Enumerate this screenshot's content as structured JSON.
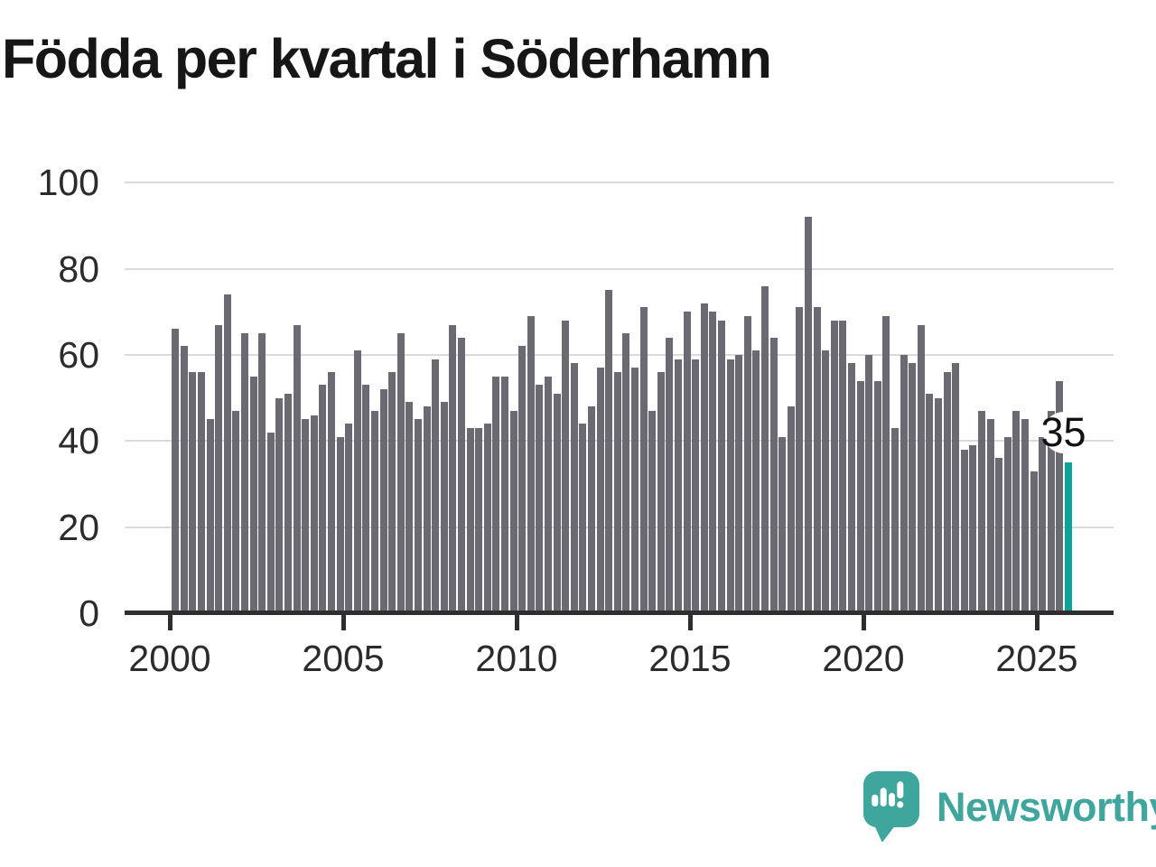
{
  "title": "Födda per kvartal i Söderhamn",
  "annotation": {
    "label": "35"
  },
  "logo": {
    "text": "Newsworthy"
  },
  "colors": {
    "bar": "#6b6a73",
    "highlight": "#0da39b",
    "grid": "#dadada",
    "axis": "#2e2e2e",
    "title_text": "#161616",
    "tick_text": "#2b2b2b",
    "logo_teal": "#3fa69d",
    "annotation_bg": "#ffffff",
    "annotation_text": "#111111"
  },
  "chart_data": {
    "type": "bar",
    "title": "Födda per kvartal i Söderhamn",
    "x_unit": "quarter",
    "period_start": "2000 Q1",
    "period_end": "2025 Q4",
    "ylim": [
      0,
      100
    ],
    "yticks": [
      0,
      20,
      40,
      60,
      80,
      100
    ],
    "xticks_years": [
      2000,
      2005,
      2010,
      2015,
      2020,
      2025
    ],
    "grid": "horizontal",
    "legend": "none",
    "highlight_last_bar": true,
    "last_value_label": "35",
    "series_by_year": [
      {
        "year": 2000,
        "quarters": [
          66,
          62,
          56,
          56
        ]
      },
      {
        "year": 2001,
        "quarters": [
          45,
          67,
          74,
          47
        ]
      },
      {
        "year": 2002,
        "quarters": [
          65,
          55,
          65,
          42
        ]
      },
      {
        "year": 2003,
        "quarters": [
          50,
          51,
          67,
          45
        ]
      },
      {
        "year": 2004,
        "quarters": [
          46,
          53,
          56,
          41
        ]
      },
      {
        "year": 2005,
        "quarters": [
          44,
          61,
          53,
          47
        ]
      },
      {
        "year": 2006,
        "quarters": [
          52,
          56,
          65,
          49
        ]
      },
      {
        "year": 2007,
        "quarters": [
          45,
          48,
          59,
          49
        ]
      },
      {
        "year": 2008,
        "quarters": [
          67,
          64,
          43,
          43
        ]
      },
      {
        "year": 2009,
        "quarters": [
          44,
          55,
          55,
          47
        ]
      },
      {
        "year": 2010,
        "quarters": [
          62,
          69,
          53,
          55
        ]
      },
      {
        "year": 2011,
        "quarters": [
          51,
          68,
          58,
          44
        ]
      },
      {
        "year": 2012,
        "quarters": [
          48,
          57,
          75,
          56
        ]
      },
      {
        "year": 2013,
        "quarters": [
          65,
          57,
          71,
          47
        ]
      },
      {
        "year": 2014,
        "quarters": [
          56,
          64,
          59,
          70
        ]
      },
      {
        "year": 2015,
        "quarters": [
          59,
          72,
          70,
          68
        ]
      },
      {
        "year": 2016,
        "quarters": [
          59,
          60,
          69,
          61
        ]
      },
      {
        "year": 2017,
        "quarters": [
          76,
          64,
          41,
          48
        ]
      },
      {
        "year": 2018,
        "quarters": [
          71,
          92,
          71,
          61
        ]
      },
      {
        "year": 2019,
        "quarters": [
          68,
          68,
          58,
          54
        ]
      },
      {
        "year": 2020,
        "quarters": [
          60,
          54,
          69,
          43
        ]
      },
      {
        "year": 2021,
        "quarters": [
          60,
          58,
          67,
          51
        ]
      },
      {
        "year": 2022,
        "quarters": [
          50,
          56,
          58,
          38
        ]
      },
      {
        "year": 2023,
        "quarters": [
          39,
          47,
          45,
          36
        ]
      },
      {
        "year": 2024,
        "quarters": [
          41,
          47,
          45,
          33
        ]
      },
      {
        "year": 2025,
        "quarters": [
          41,
          47,
          54,
          35
        ]
      }
    ]
  }
}
